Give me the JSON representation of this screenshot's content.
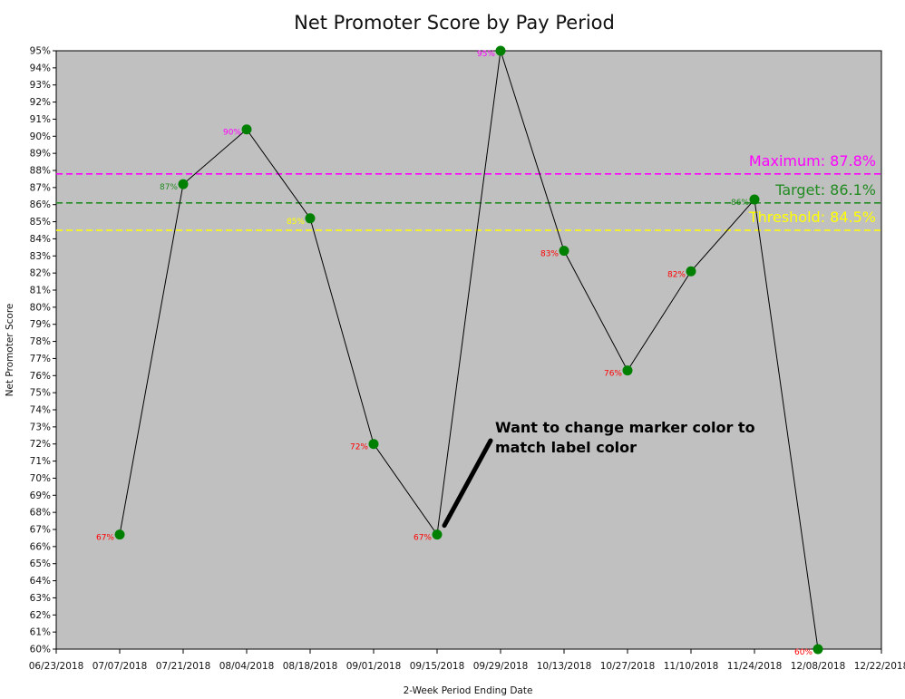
{
  "chart_data": {
    "type": "line",
    "title": "Net Promoter Score by Pay Period",
    "xlabel": "2-Week Period Ending Date",
    "ylabel": "Net Promoter Score",
    "ylim": [
      60,
      95
    ],
    "y_tick_step": 1,
    "y_tick_suffix": "%",
    "x_ticks": [
      "06/23/2018",
      "07/07/2018",
      "07/21/2018",
      "08/04/2018",
      "08/18/2018",
      "09/01/2018",
      "09/15/2018",
      "09/29/2018",
      "10/13/2018",
      "10/27/2018",
      "11/10/2018",
      "11/24/2018",
      "12/08/2018",
      "12/22/2018"
    ],
    "grid": false,
    "background": "#c0c0c0",
    "series": [
      {
        "line_color": "#000000",
        "marker_color": "#008000",
        "points": [
          {
            "x": "07/07/2018",
            "y": 66.7,
            "label": "67%",
            "label_color": "#ff0000"
          },
          {
            "x": "07/21/2018",
            "y": 87.2,
            "label": "87%",
            "label_color": "#228b22"
          },
          {
            "x": "08/04/2018",
            "y": 90.4,
            "label": "90%",
            "label_color": "#ff00ff"
          },
          {
            "x": "08/18/2018",
            "y": 85.2,
            "label": "85%",
            "label_color": "#ffff00"
          },
          {
            "x": "09/01/2018",
            "y": 72.0,
            "label": "72%",
            "label_color": "#ff0000"
          },
          {
            "x": "09/15/2018",
            "y": 66.7,
            "label": "67%",
            "label_color": "#ff0000"
          },
          {
            "x": "09/29/2018",
            "y": 95.0,
            "label": "95%",
            "label_color": "#ff00ff"
          },
          {
            "x": "10/13/2018",
            "y": 83.3,
            "label": "83%",
            "label_color": "#ff0000"
          },
          {
            "x": "10/27/2018",
            "y": 76.3,
            "label": "76%",
            "label_color": "#ff0000"
          },
          {
            "x": "11/10/2018",
            "y": 82.1,
            "label": "82%",
            "label_color": "#ff0000"
          },
          {
            "x": "11/24/2018",
            "y": 86.3,
            "label": "86%",
            "label_color": "#228b22"
          },
          {
            "x": "12/08/2018",
            "y": 60.0,
            "label": "60%",
            "label_color": "#ff0000"
          }
        ]
      }
    ],
    "reference_lines": [
      {
        "label": "Maximum: 87.8%",
        "y": 87.8,
        "color": "#ff00ff"
      },
      {
        "label": "Target: 86.1%",
        "y": 86.1,
        "color": "#228b22"
      },
      {
        "label": "Threshold: 84.5%",
        "y": 84.5,
        "color": "#ffff00"
      }
    ],
    "annotation": {
      "lines": [
        "Want to change marker color to",
        "match label color"
      ],
      "points_to": {
        "x": "09/15/2018",
        "y": 66.7
      }
    }
  }
}
